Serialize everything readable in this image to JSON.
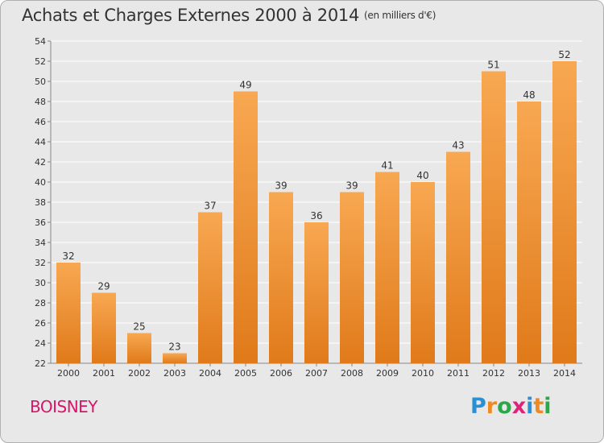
{
  "title": "Achats et Charges Externes 2000 à 2014",
  "unit": "(en milliers d'€)",
  "commune": "BOISNEY",
  "brand": {
    "text": "Proxiti",
    "letters": [
      {
        "ch": "P",
        "color": "#2b8fd6"
      },
      {
        "ch": "r",
        "color": "#ef8a22"
      },
      {
        "ch": "o",
        "color": "#2ba84a"
      },
      {
        "ch": "x",
        "color": "#e0237a"
      },
      {
        "ch": "i",
        "color": "#2b8fd6"
      },
      {
        "ch": "t",
        "color": "#ef8a22"
      },
      {
        "ch": "i",
        "color": "#2ba84a"
      }
    ]
  },
  "colors": {
    "bar_top": "#f8a852",
    "bar_bottom": "#e07a1a",
    "grid": "#ffffff",
    "text": "#333333"
  },
  "chart_data": {
    "type": "bar",
    "categories": [
      "2000",
      "2001",
      "2002",
      "2003",
      "2004",
      "2005",
      "2006",
      "2007",
      "2008",
      "2009",
      "2010",
      "2011",
      "2012",
      "2013",
      "2014"
    ],
    "values": [
      32,
      29,
      25,
      23,
      37,
      49,
      39,
      36,
      39,
      41,
      40,
      43,
      51,
      48,
      52
    ],
    "ylim": [
      22,
      54
    ],
    "yticks": [
      22,
      24,
      26,
      28,
      30,
      32,
      34,
      36,
      38,
      40,
      42,
      44,
      46,
      48,
      50,
      52,
      54
    ],
    "grid": true,
    "data_labels": true
  }
}
